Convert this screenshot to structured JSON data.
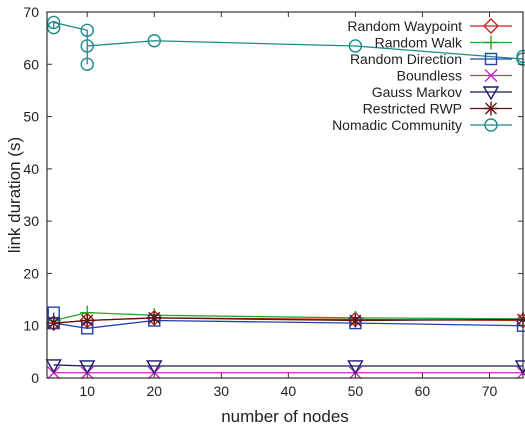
{
  "chart_data": {
    "type": "line",
    "title": "",
    "xlabel": "number of nodes",
    "ylabel": "link duration (s)",
    "xlim": [
      4,
      75
    ],
    "ylim": [
      0,
      70
    ],
    "xticks": [
      10,
      20,
      30,
      40,
      50,
      60,
      70
    ],
    "yticks": [
      0,
      10,
      20,
      30,
      40,
      50,
      60,
      70
    ],
    "grid": false,
    "legend": "top-right",
    "series": [
      {
        "name": "Random Waypoint",
        "color": "#cc2222",
        "marker": "diamond",
        "x": [
          5,
          10,
          20,
          50,
          75
        ],
        "y": [
          10.5,
          11,
          11.5,
          11.2,
          11
        ]
      },
      {
        "name": "Random Walk",
        "color": "#22aa22",
        "marker": "plus",
        "x": [
          5,
          10,
          20,
          50,
          75
        ],
        "y": [
          11,
          12.5,
          12,
          11.5,
          11.3
        ]
      },
      {
        "name": "Random Direction",
        "color": "#2244aa",
        "marker": "square",
        "x": [
          5,
          5,
          10,
          20,
          50,
          75
        ],
        "y": [
          12.5,
          10.5,
          9.5,
          11,
          10.5,
          10
        ]
      },
      {
        "name": "Boundless",
        "color": "#cc22cc",
        "marker": "x",
        "x": [
          5,
          10,
          20,
          50,
          75
        ],
        "y": [
          1,
          1,
          1,
          1,
          1
        ]
      },
      {
        "name": "Gauss Markov",
        "color": "#1a1a66",
        "marker": "triangle-down",
        "x": [
          5,
          10,
          20,
          50,
          75
        ],
        "y": [
          2.5,
          2.3,
          2.3,
          2.3,
          2.3
        ]
      },
      {
        "name": "Restricted RWP",
        "color": "#661111",
        "marker": "star",
        "x": [
          5,
          10,
          20,
          50,
          75
        ],
        "y": [
          10.5,
          11,
          11.5,
          11,
          11.2
        ]
      },
      {
        "name": "Nomadic Community",
        "color": "#1f8a8a",
        "marker": "circle",
        "x": [
          5,
          5,
          10,
          10,
          10,
          20,
          50,
          75,
          75
        ],
        "y": [
          67,
          68,
          66.5,
          60,
          63.5,
          64.5,
          63.5,
          61,
          61.5
        ]
      }
    ]
  }
}
